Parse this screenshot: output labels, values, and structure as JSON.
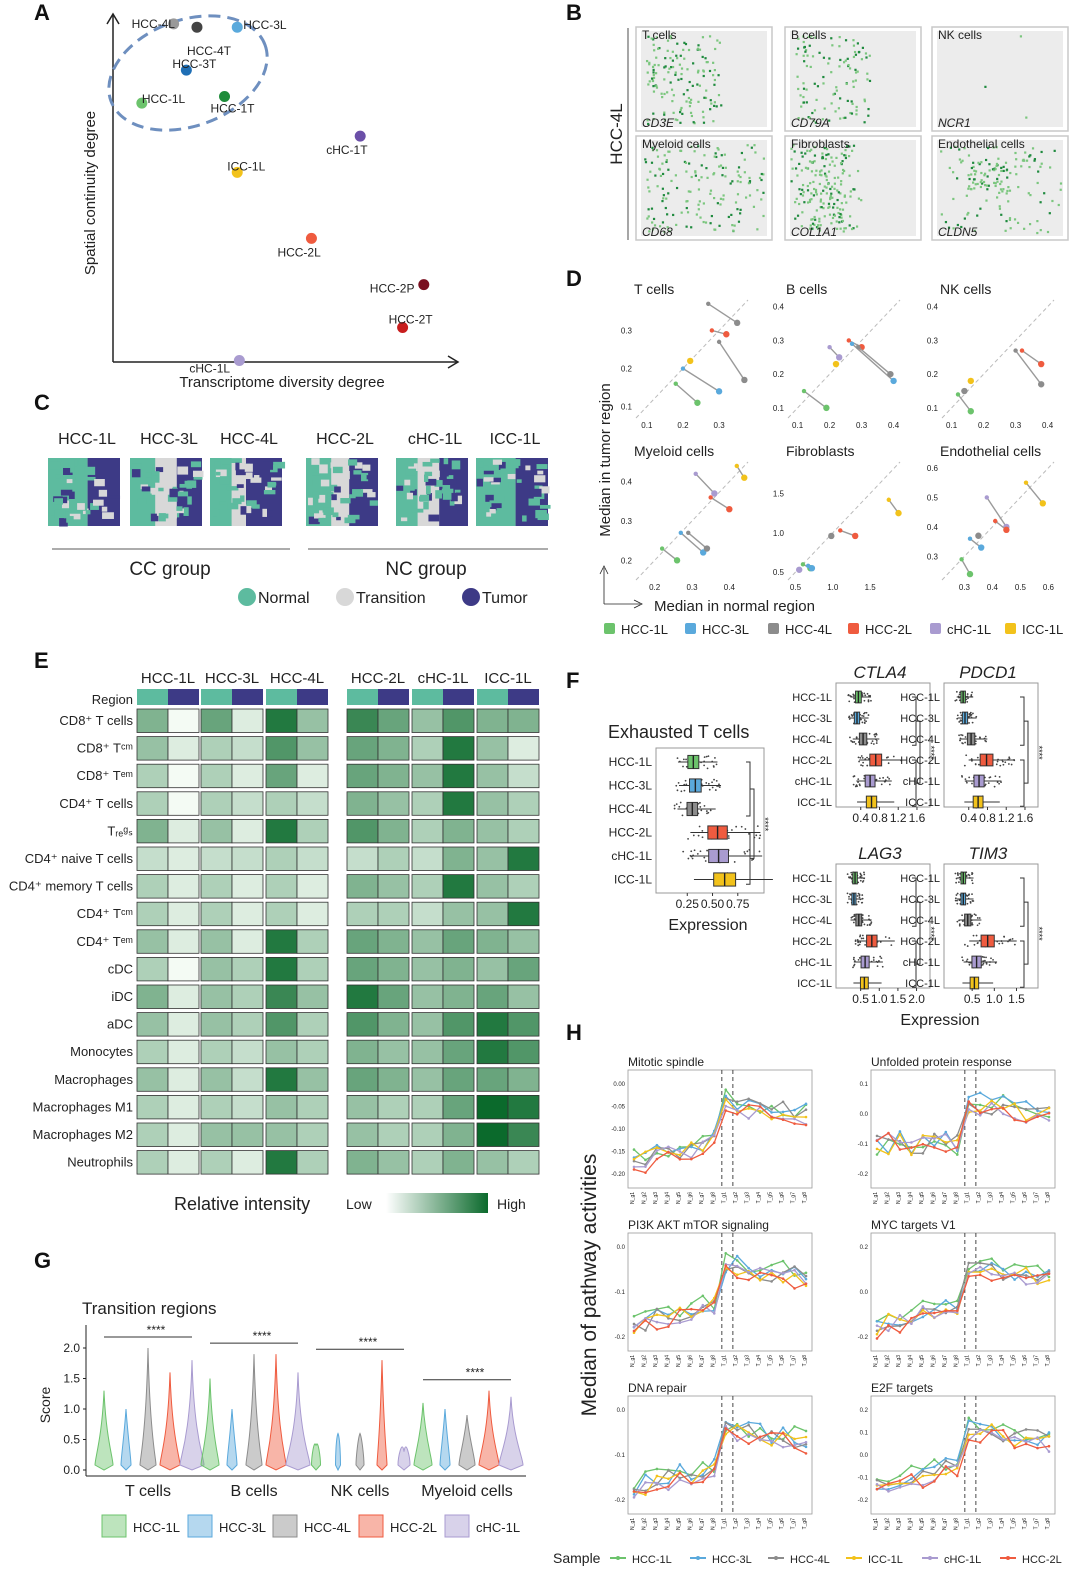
{
  "panel_letters": {
    "A": "A",
    "B": "B",
    "C": "C",
    "D": "D",
    "E": "E",
    "F": "F",
    "G": "G",
    "H": "H"
  },
  "colors": {
    "HCC-1L": "#6cc36c",
    "HCC-3L": "#5aa9dc",
    "HCC-4L": "#8c8c8c",
    "HCC-2L": "#ef5b3f",
    "cHC-1L": "#a99bd0",
    "ICC-1L": "#f2c21b",
    "normal": "#5dbb9f",
    "transition": "#d8d8d8",
    "tumor": "#3d3a86",
    "green_low": "#f4fbf4",
    "green_high": "#0b6a2c"
  },
  "panel_a": {
    "xlabel": "Transcriptome diversity degree",
    "ylabel": "Spatial  continuity degree",
    "points": [
      {
        "label": "HCC-4L",
        "x": 0.22,
        "y": 0.97,
        "color": "#999999"
      },
      {
        "label": "HCC-4T",
        "x": 0.33,
        "y": 0.96,
        "color": "#444444"
      },
      {
        "label": "HCC-3L",
        "x": 0.52,
        "y": 0.96,
        "color": "#5aa9dc"
      },
      {
        "label": "HCC-3T",
        "x": 0.28,
        "y": 0.83,
        "color": "#1f6fb5"
      },
      {
        "label": "HCC-1L",
        "x": 0.07,
        "y": 0.73,
        "color": "#6cc36c"
      },
      {
        "label": "HCC-1T",
        "x": 0.46,
        "y": 0.75,
        "color": "#1e8c3a"
      },
      {
        "label": "cHC-1T",
        "x": 1.1,
        "y": 0.63,
        "color": "#6b4fa8"
      },
      {
        "label": "ICC-1L",
        "x": 0.52,
        "y": 0.52,
        "color": "#f2c21b"
      },
      {
        "label": "HCC-2L",
        "x": 0.87,
        "y": 0.32,
        "color": "#ef5b3f"
      },
      {
        "label": "HCC-2P",
        "x": 1.4,
        "y": 0.18,
        "color": "#7a1020"
      },
      {
        "label": "HCC-2T",
        "x": 1.3,
        "y": 0.05,
        "color": "#c81e1e"
      },
      {
        "label": "cHC-1L",
        "x": 0.53,
        "y": -0.05,
        "color": "#a99bd0"
      }
    ]
  },
  "panel_b": {
    "row_label": "HCC-4L",
    "cells": [
      {
        "title": "T cells",
        "gene": "CD3E"
      },
      {
        "title": "B cells",
        "gene": "CD79A"
      },
      {
        "title": "NK cells",
        "gene": "NCR1"
      },
      {
        "title": "Myeloid cells",
        "gene": "CD68"
      },
      {
        "title": "Fibroblasts",
        "gene": "COL1A1"
      },
      {
        "title": "Endothelial cells",
        "gene": "CLDN5"
      }
    ]
  },
  "panel_c": {
    "samples": [
      "HCC-1L",
      "HCC-3L",
      "HCC-4L",
      "HCC-2L",
      "cHC-1L",
      "ICC-1L"
    ],
    "groups": [
      "CC group",
      "NC group"
    ],
    "legend": [
      "Normal",
      "Transition",
      "Tumor"
    ]
  },
  "panel_d": {
    "ylabel": "Median in tumor region",
    "xlabel": "Median in normal region",
    "legend": [
      "HCC-1L",
      "HCC-3L",
      "HCC-4L",
      "HCC-2L",
      "cHC-1L",
      "ICC-1L"
    ],
    "subplots": [
      {
        "title": "T cells",
        "lim": [
          0.07,
          0.38
        ],
        "xticks": [
          "0.1",
          "0.2",
          "0.3"
        ],
        "yticks": [
          "0.1",
          "0.2",
          "0.3"
        ],
        "segs": [
          {
            "s": "HCC-1L",
            "x1": 0.18,
            "y1": 0.16,
            "x2": 0.24,
            "y2": 0.11
          },
          {
            "s": "HCC-3L",
            "x1": 0.2,
            "y1": 0.2,
            "x2": 0.3,
            "y2": 0.14
          },
          {
            "s": "HCC-4L",
            "x1": 0.27,
            "y1": 0.37,
            "x2": 0.35,
            "y2": 0.32
          },
          {
            "s": "HCC-4L",
            "x1": 0.3,
            "y1": 0.27,
            "x2": 0.37,
            "y2": 0.17
          },
          {
            "s": "HCC-2L",
            "x1": 0.28,
            "y1": 0.3,
            "x2": 0.32,
            "y2": 0.29
          },
          {
            "s": "ICC-1L",
            "x1": 0.22,
            "y1": 0.22,
            "x2": 0.22,
            "y2": 0.22
          }
        ]
      },
      {
        "title": "B cells",
        "lim": [
          0.07,
          0.42
        ],
        "xticks": [
          "0.1",
          "0.2",
          "0.3",
          "0.4"
        ],
        "yticks": [
          "0.1",
          "0.2",
          "0.3",
          "0.4"
        ],
        "segs": [
          {
            "s": "HCC-1L",
            "x1": 0.12,
            "y1": 0.15,
            "x2": 0.19,
            "y2": 0.1
          },
          {
            "s": "cHC-1L",
            "x1": 0.2,
            "y1": 0.28,
            "x2": 0.23,
            "y2": 0.25
          },
          {
            "s": "HCC-2L",
            "x1": 0.26,
            "y1": 0.3,
            "x2": 0.3,
            "y2": 0.28
          },
          {
            "s": "HCC-3L",
            "x1": 0.27,
            "y1": 0.29,
            "x2": 0.4,
            "y2": 0.18
          },
          {
            "s": "HCC-4L",
            "x1": 0.29,
            "y1": 0.28,
            "x2": 0.39,
            "y2": 0.2
          },
          {
            "s": "ICC-1L",
            "x1": 0.22,
            "y1": 0.23,
            "x2": 0.22,
            "y2": 0.23
          }
        ]
      },
      {
        "title": "NK cells",
        "lim": [
          0.07,
          0.42
        ],
        "xticks": [
          "0.1",
          "0.2",
          "0.3",
          "0.4"
        ],
        "yticks": [
          "0.1",
          "0.2",
          "0.3",
          "0.4"
        ],
        "segs": [
          {
            "s": "HCC-1L",
            "x1": 0.12,
            "y1": 0.14,
            "x2": 0.16,
            "y2": 0.09
          },
          {
            "s": "HCC-4L",
            "x1": 0.14,
            "y1": 0.15,
            "x2": 0.14,
            "y2": 0.15
          },
          {
            "s": "ICC-1L",
            "x1": 0.16,
            "y1": 0.18,
            "x2": 0.16,
            "y2": 0.18
          },
          {
            "s": "HCC-2L",
            "x1": 0.32,
            "y1": 0.27,
            "x2": 0.38,
            "y2": 0.23
          },
          {
            "s": "HCC-4L",
            "x1": 0.3,
            "y1": 0.27,
            "x2": 0.38,
            "y2": 0.17
          }
        ]
      },
      {
        "title": "Myeloid cells",
        "lim": [
          0.15,
          0.45
        ],
        "xticks": [
          "0.2",
          "0.3",
          "0.4"
        ],
        "yticks": [
          "0.2",
          "0.3",
          "0.4"
        ],
        "segs": [
          {
            "s": "HCC-1L",
            "x1": 0.22,
            "y1": 0.23,
            "x2": 0.26,
            "y2": 0.2
          },
          {
            "s": "HCC-3L",
            "x1": 0.27,
            "y1": 0.27,
            "x2": 0.33,
            "y2": 0.22
          },
          {
            "s": "HCC-4L",
            "x1": 0.29,
            "y1": 0.27,
            "x2": 0.34,
            "y2": 0.23
          },
          {
            "s": "cHC-1L",
            "x1": 0.31,
            "y1": 0.42,
            "x2": 0.36,
            "y2": 0.37
          },
          {
            "s": "HCC-2L",
            "x1": 0.35,
            "y1": 0.36,
            "x2": 0.4,
            "y2": 0.33
          },
          {
            "s": "ICC-1L",
            "x1": 0.42,
            "y1": 0.44,
            "x2": 0.44,
            "y2": 0.41
          }
        ]
      },
      {
        "title": "Fibroblasts",
        "lim": [
          0.4,
          1.9
        ],
        "xticks": [
          "0.5",
          "1.0",
          "1.5"
        ],
        "yticks": [
          "0.5",
          "1.0",
          "1.5"
        ],
        "segs": [
          {
            "s": "HCC-1L",
            "x1": 0.6,
            "y1": 0.6,
            "x2": 0.7,
            "y2": 0.55
          },
          {
            "s": "HCC-3L",
            "x1": 0.67,
            "y1": 0.58,
            "x2": 0.72,
            "y2": 0.55
          },
          {
            "s": "cHC-1L",
            "x1": 0.55,
            "y1": 0.53,
            "x2": 0.55,
            "y2": 0.53
          },
          {
            "s": "HCC-4L",
            "x1": 0.98,
            "y1": 0.96,
            "x2": 0.98,
            "y2": 0.96
          },
          {
            "s": "HCC-2L",
            "x1": 1.1,
            "y1": 1.03,
            "x2": 1.3,
            "y2": 0.96
          },
          {
            "s": "ICC-1L",
            "x1": 1.75,
            "y1": 1.42,
            "x2": 1.88,
            "y2": 1.25
          }
        ]
      },
      {
        "title": "Endothelial cells",
        "lim": [
          0.22,
          0.62
        ],
        "xticks": [
          "0.3",
          "0.4",
          "0.5",
          "0.6"
        ],
        "yticks": [
          "0.3",
          "0.4",
          "0.5",
          "0.6"
        ],
        "segs": [
          {
            "s": "HCC-1L",
            "x1": 0.29,
            "y1": 0.29,
            "x2": 0.32,
            "y2": 0.24
          },
          {
            "s": "HCC-3L",
            "x1": 0.32,
            "y1": 0.36,
            "x2": 0.36,
            "y2": 0.33
          },
          {
            "s": "HCC-4L",
            "x1": 0.35,
            "y1": 0.37,
            "x2": 0.35,
            "y2": 0.37
          },
          {
            "s": "cHC-1L",
            "x1": 0.38,
            "y1": 0.5,
            "x2": 0.45,
            "y2": 0.4
          },
          {
            "s": "HCC-2L",
            "x1": 0.41,
            "y1": 0.42,
            "x2": 0.45,
            "y2": 0.39
          },
          {
            "s": "ICC-1L",
            "x1": 0.52,
            "y1": 0.55,
            "x2": 0.58,
            "y2": 0.48
          }
        ]
      }
    ]
  },
  "panel_e": {
    "columns": [
      "HCC-1L",
      "HCC-3L",
      "HCC-4L",
      "HCC-2L",
      "cHC-1L",
      "ICC-1L"
    ],
    "region_label": "Region",
    "rows": [
      {
        "label": "CD8⁺ T cells",
        "v": [
          5,
          0,
          6,
          1,
          9,
          4,
          8,
          6,
          4,
          7,
          5,
          5
        ]
      },
      {
        "label": "CD8⁺ Tᶜᵐ",
        "v": [
          4,
          1,
          3,
          2,
          7,
          4,
          6,
          5,
          3,
          9,
          4,
          1
        ]
      },
      {
        "label": "CD8⁺ Tᵉᵐ",
        "v": [
          3,
          0,
          3,
          1,
          6,
          1,
          6,
          5,
          4,
          9,
          4,
          2
        ]
      },
      {
        "label": "CD4⁺ T cells",
        "v": [
          3,
          0,
          3,
          2,
          3,
          2,
          5,
          4,
          3,
          9,
          4,
          3
        ]
      },
      {
        "label": "Tᵣₑᵍₛ",
        "v": [
          5,
          1,
          4,
          1,
          9,
          3,
          7,
          5,
          3,
          5,
          4,
          3
        ]
      },
      {
        "label": "CD4⁺ naive T cells",
        "v": [
          2,
          1,
          2,
          2,
          3,
          2,
          2,
          3,
          2,
          5,
          4,
          9
        ]
      },
      {
        "label": "CD4⁺ memory T cells",
        "v": [
          3,
          1,
          3,
          1,
          3,
          1,
          5,
          4,
          3,
          9,
          4,
          3
        ]
      },
      {
        "label": "CD4⁺ Tᶜᵐ",
        "v": [
          3,
          1,
          3,
          1,
          3,
          1,
          3,
          3,
          2,
          4,
          4,
          9
        ]
      },
      {
        "label": "CD4⁺ Tᵉᵐ",
        "v": [
          4,
          1,
          4,
          1,
          9,
          3,
          6,
          5,
          4,
          6,
          5,
          4
        ]
      },
      {
        "label": "cDC",
        "v": [
          3,
          0,
          4,
          3,
          9,
          3,
          6,
          5,
          4,
          5,
          4,
          6
        ]
      },
      {
        "label": "iDC",
        "v": [
          5,
          1,
          4,
          3,
          8,
          4,
          9,
          6,
          4,
          5,
          6,
          4
        ]
      },
      {
        "label": "aDC",
        "v": [
          4,
          1,
          4,
          3,
          7,
          3,
          7,
          5,
          4,
          7,
          9,
          7
        ]
      },
      {
        "label": "Monocytes",
        "v": [
          3,
          1,
          3,
          2,
          4,
          3,
          5,
          4,
          4,
          6,
          9,
          7
        ]
      },
      {
        "label": "Macrophages",
        "v": [
          4,
          1,
          4,
          2,
          9,
          4,
          6,
          5,
          4,
          6,
          6,
          5
        ]
      },
      {
        "label": "Macrophages M1",
        "v": [
          3,
          1,
          3,
          2,
          4,
          3,
          4,
          3,
          3,
          6,
          10,
          9
        ]
      },
      {
        "label": "Macrophages M2",
        "v": [
          3,
          1,
          4,
          4,
          4,
          3,
          4,
          3,
          3,
          5,
          10,
          8
        ]
      },
      {
        "label": "Neutrophils",
        "v": [
          3,
          1,
          3,
          1,
          9,
          3,
          5,
          4,
          3,
          5,
          4,
          3
        ]
      }
    ],
    "legend_title": "Relative  intensity",
    "legend_low": "Low",
    "legend_high": "High"
  },
  "panel_f": {
    "main_title": "Exhausted T cells",
    "main_ticks": [
      "0.25",
      "0.50",
      "0.75"
    ],
    "xlabel": "Expression",
    "samples": [
      "HCC-1L",
      "HCC-3L",
      "HCC-4L",
      "HCC-2L",
      "cHC-1L",
      "ICC-1L"
    ],
    "sig": "****",
    "main_medians": [
      0.31,
      0.33,
      0.3,
      0.55,
      0.56,
      0.62
    ],
    "genes": [
      {
        "name": "CTLA4",
        "ticks": [
          "0.4",
          "0.8",
          "1.2",
          "1.6"
        ],
        "medians": [
          0.35,
          0.32,
          0.45,
          0.72,
          0.6,
          0.63
        ]
      },
      {
        "name": "PDCD1",
        "ticks": [
          "0.4",
          "0.8",
          "1.2",
          "1.6"
        ],
        "medians": [
          0.28,
          0.32,
          0.45,
          0.78,
          0.62,
          0.6
        ]
      },
      {
        "name": "LAG3",
        "ticks": [
          "0.5",
          "1.0",
          "1.5",
          "2.0"
        ],
        "medians": [
          0.35,
          0.32,
          0.45,
          0.8,
          0.62,
          0.6
        ]
      },
      {
        "name": "TIM3",
        "ticks": [
          "0.5",
          "1.0",
          "1.5"
        ],
        "medians": [
          0.3,
          0.3,
          0.4,
          0.85,
          0.6,
          0.55
        ]
      }
    ]
  },
  "panel_g": {
    "title": "Transition regions",
    "ylabel": "Score",
    "yticks": [
      "0.0",
      "0.5",
      "1.0",
      "1.5",
      "2.0"
    ],
    "groups": [
      "T cells",
      "B cells",
      "NK cells",
      "Myeloid cells"
    ],
    "sig": "****",
    "legend": [
      "HCC-1L",
      "HCC-3L",
      "HCC-4L",
      "HCC-2L",
      "cHC-1L"
    ],
    "heights": [
      [
        1.3,
        1.0,
        2.0,
        1.6,
        1.8
      ],
      [
        1.5,
        1.0,
        1.9,
        1.9,
        1.6
      ],
      [
        0.4,
        0.6,
        0.6,
        1.8,
        0.3
      ],
      [
        1.1,
        1.0,
        0.9,
        1.3,
        1.2
      ]
    ]
  },
  "panel_h": {
    "ylabel": "Median of pathway activities",
    "legend_title": "Sample",
    "legend": [
      "HCC-1L",
      "HCC-3L",
      "HCC-4L",
      "ICC-1L",
      "cHC-1L",
      "HCC-2L"
    ],
    "pathways": [
      "Mitotic spindle",
      "Unfolded protein response",
      "PI3K AKT mTOR signaling",
      "MYC targets V1",
      "DNA repair",
      "E2F targets"
    ],
    "yticks": [
      [
        "0.00",
        "-0.05",
        "-0.10",
        "-0.15",
        "-0.20"
      ],
      [
        "0.1",
        "0.0",
        "-0.1",
        "-0.2"
      ],
      [
        "0.0",
        "-0.1",
        "-0.2"
      ],
      [
        "0.2",
        "0.0",
        "-0.2"
      ],
      [
        "0.0",
        "-0.1",
        "-0.2"
      ],
      [
        "0.2",
        "0.1",
        "0.0",
        "-0.1",
        "-0.2"
      ]
    ]
  }
}
